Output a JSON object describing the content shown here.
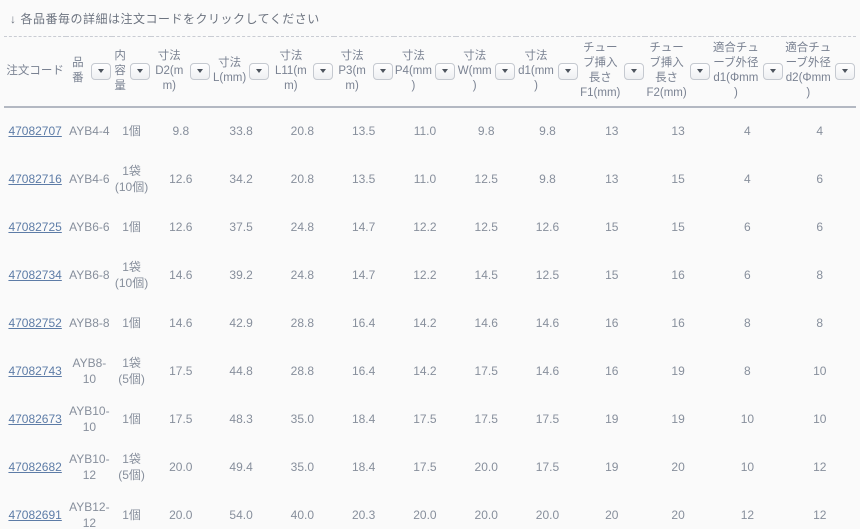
{
  "page": {
    "instruction_arrow": "↓",
    "instruction": "各品番毎の詳細は注文コードをクリックしてください"
  },
  "colors": {
    "background": "#fafafa",
    "link": "#5d7ca7",
    "text": "#878f9c",
    "header_text": "#7a8292",
    "solid_border": "#b3b8c2",
    "dashed_border": "#c9ccd3"
  },
  "table": {
    "columns": [
      {
        "id": "order-code",
        "lines": [
          "注文コード"
        ],
        "sortable": false
      },
      {
        "id": "part-no",
        "lines": [
          "品番"
        ],
        "sortable": true
      },
      {
        "id": "quantity",
        "lines": [
          "内容量"
        ],
        "sortable": true
      },
      {
        "id": "dim-d2",
        "lines": [
          "寸法",
          "D2(mm)"
        ],
        "sortable": true
      },
      {
        "id": "dim-l",
        "lines": [
          "寸法",
          "L(mm)"
        ],
        "sortable": true
      },
      {
        "id": "dim-l11",
        "lines": [
          "寸法",
          "L11(mm)"
        ],
        "sortable": true
      },
      {
        "id": "dim-p3",
        "lines": [
          "寸法",
          "P3(mm)"
        ],
        "sortable": true
      },
      {
        "id": "dim-p4",
        "lines": [
          "寸法",
          "P4(mm)"
        ],
        "sortable": true
      },
      {
        "id": "dim-w",
        "lines": [
          "寸法",
          "W(mm)"
        ],
        "sortable": true
      },
      {
        "id": "dim-d1",
        "lines": [
          "寸法",
          "d1(mm)"
        ],
        "sortable": true
      },
      {
        "id": "tube-f1",
        "lines": [
          "チューブ挿入長さ",
          "F1(mm)"
        ],
        "sortable": true
      },
      {
        "id": "tube-f2",
        "lines": [
          "チューブ挿入長さ",
          "F2(mm)"
        ],
        "sortable": true
      },
      {
        "id": "fit-od-d1",
        "lines": [
          "適合チューブ外径",
          "d1(Φmm)"
        ],
        "sortable": true
      },
      {
        "id": "fit-od-d2",
        "lines": [
          "適合チューブ外径",
          "d2(Φmm)"
        ],
        "sortable": true
      }
    ],
    "rows": [
      {
        "order_code": "47082707",
        "part_no": "AYB4-4",
        "quantity": "1個",
        "values": [
          "9.8",
          "33.8",
          "20.8",
          "13.5",
          "11.0",
          "9.8",
          "9.8",
          "13",
          "13",
          "4",
          "4"
        ]
      },
      {
        "order_code": "47082716",
        "part_no": "AYB4-6",
        "quantity": "1袋\n(10個)",
        "values": [
          "12.6",
          "34.2",
          "20.8",
          "13.5",
          "11.0",
          "12.5",
          "9.8",
          "13",
          "15",
          "4",
          "6"
        ]
      },
      {
        "order_code": "47082725",
        "part_no": "AYB6-6",
        "quantity": "1個",
        "values": [
          "12.6",
          "37.5",
          "24.8",
          "14.7",
          "12.2",
          "12.5",
          "12.6",
          "15",
          "15",
          "6",
          "6"
        ]
      },
      {
        "order_code": "47082734",
        "part_no": "AYB6-8",
        "quantity": "1袋\n(10個)",
        "values": [
          "14.6",
          "39.2",
          "24.8",
          "14.7",
          "12.2",
          "14.5",
          "12.5",
          "15",
          "16",
          "6",
          "8"
        ]
      },
      {
        "order_code": "47082752",
        "part_no": "AYB8-8",
        "quantity": "1個",
        "values": [
          "14.6",
          "42.9",
          "28.8",
          "16.4",
          "14.2",
          "14.6",
          "14.6",
          "16",
          "16",
          "8",
          "8"
        ]
      },
      {
        "order_code": "47082743",
        "part_no": "AYB8-10",
        "quantity": "1袋\n(5個)",
        "values": [
          "17.5",
          "44.8",
          "28.8",
          "16.4",
          "14.2",
          "17.5",
          "14.6",
          "16",
          "19",
          "8",
          "10"
        ]
      },
      {
        "order_code": "47082673",
        "part_no": "AYB10-10",
        "quantity": "1個",
        "values": [
          "17.5",
          "48.3",
          "35.0",
          "18.4",
          "17.5",
          "17.5",
          "17.5",
          "19",
          "19",
          "10",
          "10"
        ]
      },
      {
        "order_code": "47082682",
        "part_no": "AYB10-12",
        "quantity": "1袋\n(5個)",
        "values": [
          "20.0",
          "49.4",
          "35.0",
          "18.4",
          "17.5",
          "20.0",
          "17.5",
          "19",
          "20",
          "10",
          "12"
        ]
      },
      {
        "order_code": "47082691",
        "part_no": "AYB12-12",
        "quantity": "1個",
        "values": [
          "20.0",
          "54.0",
          "40.0",
          "20.3",
          "20.0",
          "20.0",
          "20.0",
          "20",
          "20",
          "12",
          "12"
        ]
      }
    ]
  }
}
